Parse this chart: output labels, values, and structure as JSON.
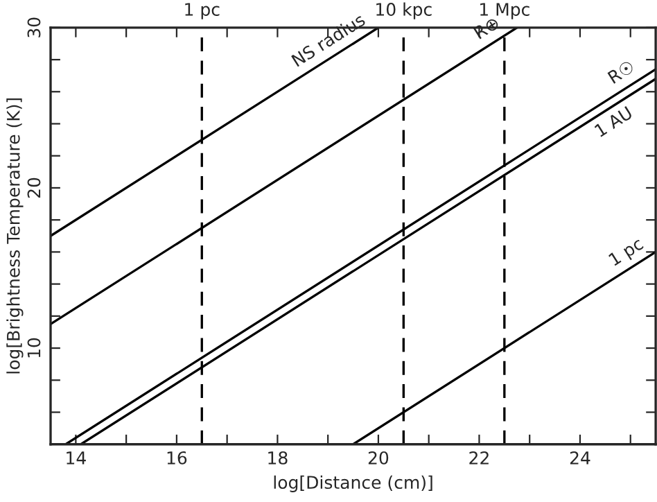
{
  "chart_data": {
    "type": "line",
    "xlabel": "log[Distance (cm)]",
    "ylabel": "log[Brightness Temperature (K)]",
    "series": [
      {
        "name": "NS radius",
        "color": "#000000",
        "x": [
          13.5,
          20.0
        ],
        "values": [
          17.0,
          30.0
        ]
      },
      {
        "name": "R⊕",
        "color": "#000000",
        "x": [
          13.5,
          22.75
        ],
        "values": [
          11.5,
          30.0
        ]
      },
      {
        "name": "R☉",
        "color": "#000000",
        "x": [
          13.8,
          25.5
        ],
        "values": [
          4.0,
          27.4
        ]
      },
      {
        "name": "1 AU",
        "color": "#000000",
        "x": [
          14.1,
          25.5
        ],
        "values": [
          4.0,
          26.8
        ]
      },
      {
        "name": "1 pc",
        "color": "#000000",
        "x": [
          19.5,
          25.5
        ],
        "values": [
          4.0,
          16.0
        ]
      }
    ],
    "ref_lines": [
      {
        "axis": "x",
        "value": 16.5,
        "label": "1 pc",
        "line_style": "dashed",
        "color": "#000000"
      },
      {
        "axis": "x",
        "value": 20.5,
        "label": "10 kpc",
        "line_style": "dashed",
        "color": "#000000"
      },
      {
        "axis": "x",
        "value": 22.5,
        "label": "1 Mpc",
        "line_style": "dashed",
        "color": "#000000"
      }
    ],
    "xlim": [
      13.5,
      25.5
    ],
    "xticks": [
      14,
      {
        "value": 15,
        "label": null
      },
      16,
      {
        "value": 17,
        "label": null
      },
      18,
      {
        "value": 19,
        "label": null
      },
      20,
      {
        "value": 21,
        "label": null
      },
      22,
      {
        "value": 23,
        "label": null
      },
      24,
      {
        "value": 25,
        "label": null
      }
    ],
    "ylim": [
      4,
      30
    ],
    "yticks": [
      {
        "value": 6,
        "label": null
      },
      {
        "value": 8,
        "label": null
      },
      10,
      {
        "value": 12,
        "label": null
      },
      {
        "value": 14,
        "label": null
      },
      {
        "value": 16,
        "label": null
      },
      {
        "value": 18,
        "label": null
      },
      20,
      {
        "value": 22,
        "label": null
      },
      {
        "value": 24,
        "label": null
      },
      {
        "value": 26,
        "label": null
      },
      {
        "value": 28,
        "label": null
      },
      30
    ],
    "grid": false,
    "legend": false,
    "marker": "none",
    "line_style": "solid"
  }
}
